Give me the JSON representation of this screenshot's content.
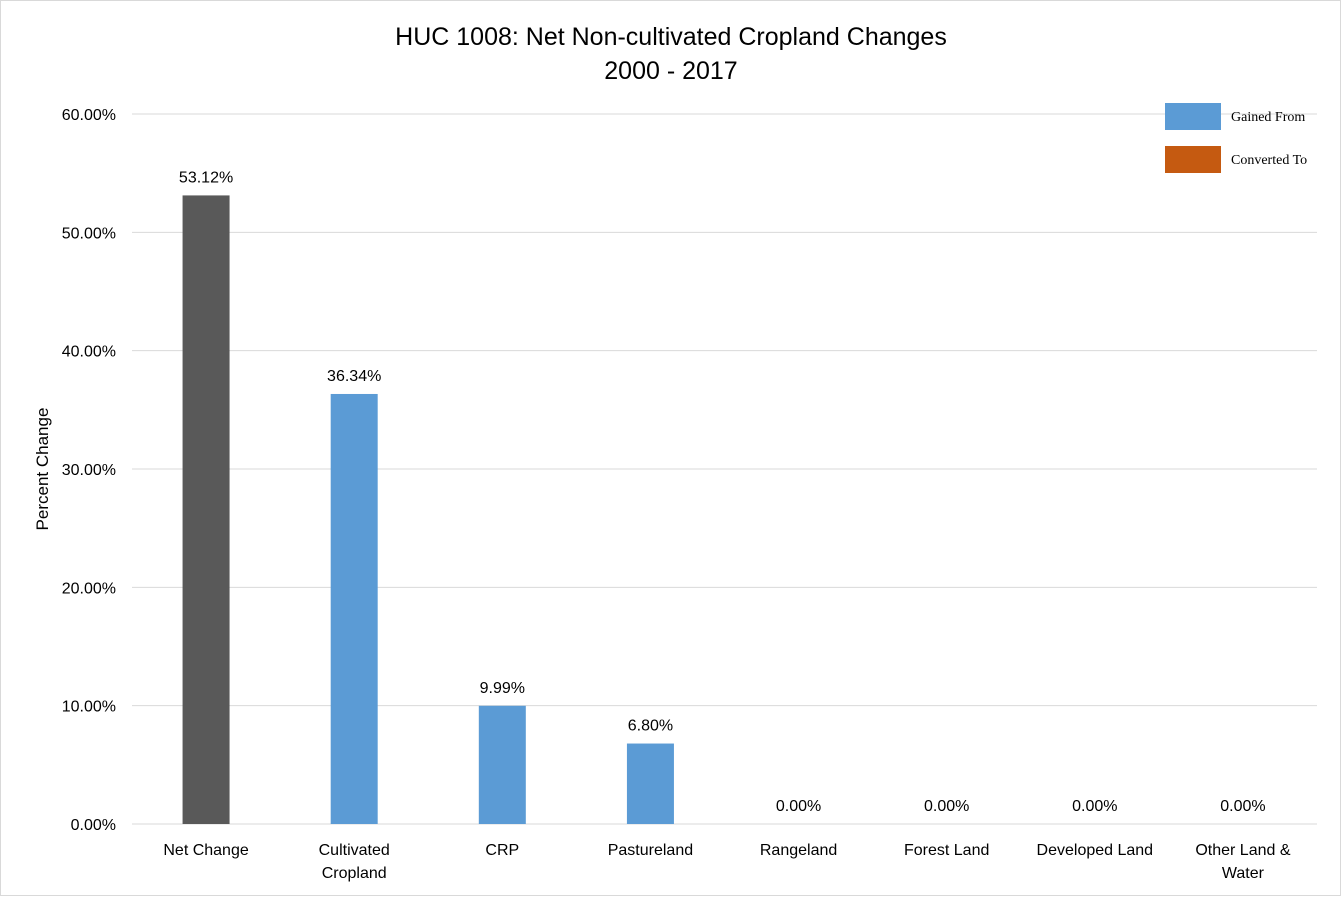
{
  "chart_data": {
    "type": "bar",
    "title": [
      "HUC 1008: Net Non-cultivated Cropland Changes",
      "2000 - 2017"
    ],
    "xlabel": "",
    "ylabel": "Percent Change",
    "ylim": [
      0,
      60
    ],
    "y_ticks": [
      "0.00%",
      "10.00%",
      "20.00%",
      "30.00%",
      "40.00%",
      "50.00%",
      "60.00%"
    ],
    "grid": true,
    "legend_position": "top-right",
    "legend": [
      {
        "name": "Gained From",
        "color": "#5b9bd5"
      },
      {
        "name": "Converted To",
        "color": "#c55a11"
      }
    ],
    "categories": [
      [
        "Net Change"
      ],
      [
        "Cultivated",
        "Cropland"
      ],
      [
        "CRP"
      ],
      [
        "Pastureland"
      ],
      [
        "Rangeland"
      ],
      [
        "Forest Land"
      ],
      [
        "Developed Land"
      ],
      [
        "Other Land &",
        "Water"
      ]
    ],
    "values": [
      53.12,
      36.34,
      9.99,
      6.8,
      0.0,
      0.0,
      0.0,
      0.0
    ],
    "value_labels": [
      "53.12%",
      "36.34%",
      "9.99%",
      "6.80%",
      "0.00%",
      "0.00%",
      "0.00%",
      "0.00%"
    ],
    "bar_colors": [
      "#595959",
      "#5b9bd5",
      "#5b9bd5",
      "#5b9bd5",
      "#5b9bd5",
      "#5b9bd5",
      "#5b9bd5",
      "#5b9bd5"
    ],
    "colors": {
      "grid": "#d9d9d9",
      "axis": "#d9d9d9"
    }
  }
}
